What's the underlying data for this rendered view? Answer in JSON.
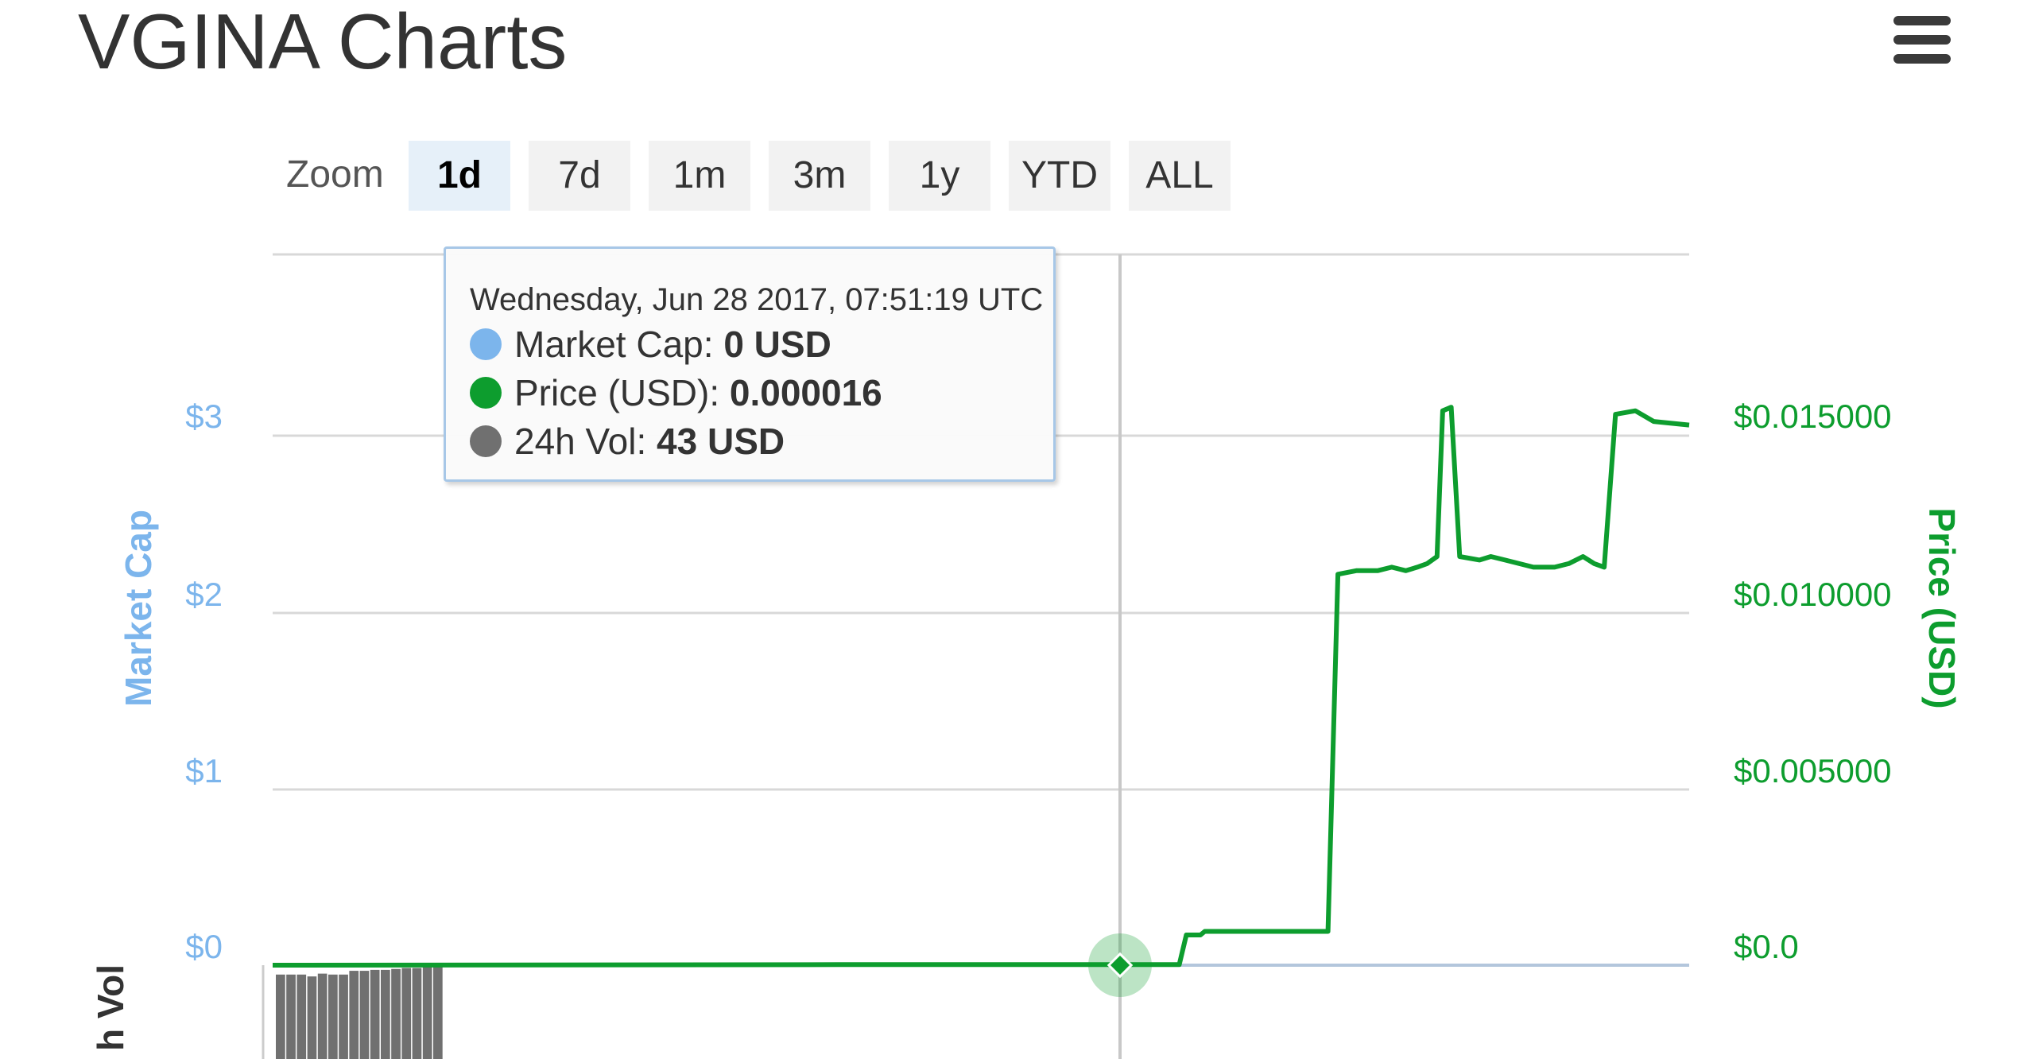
{
  "header": {
    "title": "VGINA Charts",
    "menu_icon": "hamburger-menu-icon"
  },
  "zoom": {
    "label": "Zoom",
    "buttons": [
      "1d",
      "7d",
      "1m",
      "3m",
      "1y",
      "YTD",
      "ALL"
    ],
    "active": "1d"
  },
  "tooltip": {
    "date": "Wednesday, Jun 28 2017, 07:51:19 UTC",
    "rows": [
      {
        "label": "Market Cap: ",
        "value": "0 USD",
        "color": "#7cb5ec"
      },
      {
        "label": "Price (USD): ",
        "value": "0.000016",
        "color": "#0d9d2e"
      },
      {
        "label": "24h Vol: ",
        "value": "43 USD",
        "color": "#707070"
      }
    ]
  },
  "chart_data": {
    "type": "line",
    "left_axis": {
      "title": "Market Cap",
      "ticks": [
        "$0",
        "$1",
        "$2",
        "$3"
      ],
      "color": "#7cb5ec"
    },
    "right_axis": {
      "title": "Price (USD)",
      "ticks": [
        "$0.0",
        "$0.005000",
        "$0.010000",
        "$0.015000"
      ],
      "color": "#0d9d2e",
      "ylim": [
        0,
        0.02
      ]
    },
    "volume_axis": {
      "title_fragment": "h Vol"
    },
    "series": [
      {
        "name": "Price (USD)",
        "color": "#0d9d2e",
        "points": [
          [
            0.0,
            0.0
          ],
          [
            0.4,
            1.6e-05
          ],
          [
            0.61,
            1.6e-05
          ],
          [
            0.64,
            1.6e-05
          ],
          [
            0.645,
            0.00085
          ],
          [
            0.655,
            0.00085
          ],
          [
            0.658,
            0.00095
          ],
          [
            0.745,
            0.00095
          ],
          [
            0.752,
            0.011
          ],
          [
            0.765,
            0.0111
          ],
          [
            0.78,
            0.0111
          ],
          [
            0.79,
            0.0112
          ],
          [
            0.8,
            0.0111
          ],
          [
            0.808,
            0.0112
          ],
          [
            0.815,
            0.0113
          ],
          [
            0.822,
            0.0115
          ],
          [
            0.826,
            0.0156
          ],
          [
            0.832,
            0.0157
          ],
          [
            0.838,
            0.0115
          ],
          [
            0.852,
            0.0114
          ],
          [
            0.86,
            0.0115
          ],
          [
            0.87,
            0.0114
          ],
          [
            0.88,
            0.0113
          ],
          [
            0.89,
            0.0112
          ],
          [
            0.905,
            0.0112
          ],
          [
            0.915,
            0.0113
          ],
          [
            0.925,
            0.0115
          ],
          [
            0.933,
            0.0113
          ],
          [
            0.94,
            0.0112
          ],
          [
            0.948,
            0.0155
          ],
          [
            0.962,
            0.0156
          ],
          [
            0.975,
            0.0153
          ],
          [
            1.0,
            0.0152
          ]
        ]
      },
      {
        "name": "Market Cap",
        "color": "#7cb5ec",
        "values_usd": 0
      }
    ],
    "volume_bars": [
      0.9,
      0.9,
      0.9,
      0.88,
      0.91,
      0.9,
      0.9,
      0.94,
      0.94,
      0.95,
      0.95,
      0.96,
      0.97,
      0.97,
      0.98,
      0.99
    ],
    "crosshair_x": 0.6,
    "grid": true
  }
}
